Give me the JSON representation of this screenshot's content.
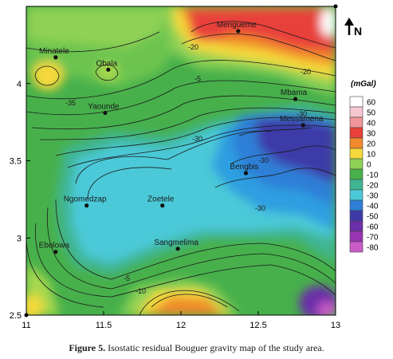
{
  "map": {
    "x_ticks": [
      "11",
      "11.5",
      "12",
      "12.5",
      "13"
    ],
    "y_ticks": [
      "2.5",
      "3",
      "3.5",
      "4"
    ],
    "x_range": [
      11,
      13
    ],
    "y_range": [
      2.5,
      4.5
    ],
    "north_label": "N"
  },
  "towns": [
    {
      "name": "Minatele",
      "lon": 11.19,
      "lat": 4.17
    },
    {
      "name": "Obala",
      "lon": 11.53,
      "lat": 4.09
    },
    {
      "name": "Mengueme",
      "lon": 12.37,
      "lat": 4.34
    },
    {
      "name": "Mbama",
      "lon": 12.74,
      "lat": 3.9
    },
    {
      "name": "Yaounde",
      "lon": 11.51,
      "lat": 3.81
    },
    {
      "name": "Messamena",
      "lon": 12.79,
      "lat": 3.73
    },
    {
      "name": "Bengbis",
      "lon": 12.42,
      "lat": 3.42
    },
    {
      "name": "Ngomedzap",
      "lon": 11.39,
      "lat": 3.21
    },
    {
      "name": "Zoetele",
      "lon": 11.88,
      "lat": 3.21
    },
    {
      "name": "Ebolowa",
      "lon": 11.19,
      "lat": 2.91
    },
    {
      "name": "Sangmelima",
      "lon": 11.98,
      "lat": 2.93
    }
  ],
  "contour_labels": [
    "-20",
    "-20",
    "-5",
    "-35",
    "-30",
    "-30",
    "-30",
    "-30",
    "-5",
    "-10"
  ],
  "legend": {
    "unit": "(mGal)",
    "values": [
      "60",
      "50",
      "40",
      "30",
      "20",
      "10",
      "0",
      "-10",
      "-20",
      "-30",
      "-40",
      "-50",
      "-60",
      "-70",
      "-80"
    ],
    "colors": [
      "#ffffff",
      "#f7c7cf",
      "#f0969a",
      "#e8413a",
      "#f08a2c",
      "#f6d93b",
      "#8fd154",
      "#47b04b",
      "#3fb592",
      "#4cc9d8",
      "#2d7fd7",
      "#3d3aa8",
      "#6b2fa7",
      "#9a34b1",
      "#c95cc7"
    ]
  },
  "caption": {
    "label": "Figure 5.",
    "text": " Isostatic residual Bouguer gravity map of the study area."
  }
}
